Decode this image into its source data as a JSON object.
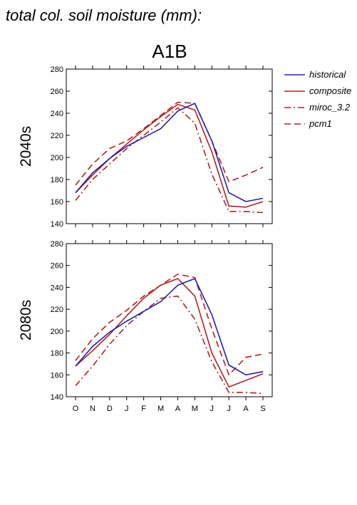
{
  "figure": {
    "title": "total col. soil moisture (mm):",
    "scenario": "A1B"
  },
  "legend": [
    {
      "name": "historical",
      "color": "#2222aa",
      "dash": "solid"
    },
    {
      "name": "composite",
      "color": "#b22222",
      "dash": "solid"
    },
    {
      "name": "miroc_3.2",
      "color": "#b22222",
      "dash": "dashdot"
    },
    {
      "name": "pcm1",
      "color": "#b22222",
      "dash": "dashed"
    }
  ],
  "chart_data": [
    {
      "type": "line",
      "row_label": "2040s",
      "categories": [
        "O",
        "N",
        "D",
        "J",
        "F",
        "M",
        "A",
        "M",
        "J",
        "J",
        "A",
        "S"
      ],
      "ylim": [
        140,
        280
      ],
      "yticks": [
        140,
        160,
        180,
        200,
        220,
        240,
        260,
        280
      ],
      "series": [
        {
          "name": "historical",
          "values": [
            168,
            186,
            199,
            210,
            218,
            226,
            242,
            249,
            215,
            168,
            160,
            163
          ]
        },
        {
          "name": "composite",
          "values": [
            168,
            184,
            199,
            212,
            225,
            237,
            248,
            243,
            205,
            156,
            155,
            160
          ]
        },
        {
          "name": "miroc_3.2",
          "values": [
            161,
            180,
            194,
            208,
            220,
            232,
            245,
            231,
            185,
            151,
            151,
            150
          ]
        },
        {
          "name": "pcm1",
          "values": [
            175,
            194,
            208,
            215,
            226,
            238,
            250,
            249,
            215,
            178,
            184,
            191
          ]
        }
      ]
    },
    {
      "type": "line",
      "row_label": "2080s",
      "categories": [
        "O",
        "N",
        "D",
        "J",
        "F",
        "M",
        "A",
        "M",
        "J",
        "J",
        "A",
        "S"
      ],
      "ylim": [
        140,
        280
      ],
      "yticks": [
        140,
        160,
        180,
        200,
        220,
        240,
        260,
        280
      ],
      "series": [
        {
          "name": "historical",
          "values": [
            168,
            186,
            199,
            209,
            218,
            227,
            242,
            248,
            215,
            169,
            160,
            163
          ]
        },
        {
          "name": "composite",
          "values": [
            168,
            182,
            197,
            214,
            230,
            242,
            248,
            232,
            180,
            149,
            155,
            161
          ]
        },
        {
          "name": "miroc_3.2",
          "values": [
            150,
            168,
            188,
            205,
            218,
            230,
            232,
            211,
            172,
            144,
            144,
            143
          ]
        },
        {
          "name": "pcm1",
          "values": [
            173,
            193,
            208,
            219,
            232,
            242,
            252,
            249,
            202,
            160,
            176,
            179
          ]
        }
      ]
    }
  ]
}
